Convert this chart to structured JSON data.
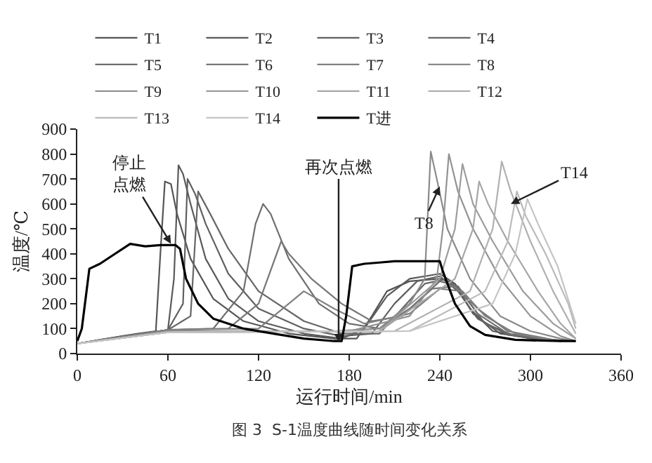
{
  "chart_data": {
    "type": "line",
    "xlabel": "运行时间/min",
    "ylabel": "温度/℃",
    "xlim": [
      0,
      360
    ],
    "xticks": [
      0,
      60,
      120,
      180,
      240,
      300,
      360
    ],
    "ylim": [
      0,
      900
    ],
    "yticks": [
      0,
      100,
      200,
      300,
      400,
      500,
      600,
      700,
      800,
      900
    ],
    "grid": false,
    "legend": "top",
    "marker": "none",
    "line_style": "solid",
    "series": [
      {
        "name": "T1",
        "color": "#555555",
        "x": [
          0,
          20,
          40,
          52,
          55,
          58,
          62,
          66,
          75,
          90,
          110,
          140,
          170,
          185,
          195,
          205,
          220,
          240,
          250,
          260,
          275,
          300,
          330
        ],
        "values": [
          40,
          60,
          80,
          90,
          400,
          690,
          680,
          560,
          380,
          220,
          130,
          80,
          60,
          60,
          150,
          250,
          290,
          300,
          280,
          180,
          90,
          60,
          50
        ]
      },
      {
        "name": "T2",
        "color": "#5a5a5a",
        "x": [
          0,
          30,
          60,
          64,
          67,
          70,
          75,
          85,
          100,
          120,
          150,
          175,
          190,
          205,
          220,
          240,
          250,
          262,
          280,
          310,
          330
        ],
        "values": [
          40,
          70,
          95,
          300,
          755,
          720,
          600,
          380,
          220,
          130,
          80,
          60,
          100,
          230,
          300,
          320,
          280,
          160,
          80,
          55,
          50
        ]
      },
      {
        "name": "T3",
        "color": "#606060",
        "x": [
          0,
          60,
          70,
          73,
          78,
          85,
          100,
          120,
          150,
          175,
          195,
          210,
          225,
          240,
          252,
          265,
          285,
          320
        ],
        "values": [
          40,
          95,
          200,
          700,
          640,
          520,
          320,
          180,
          100,
          70,
          80,
          200,
          290,
          310,
          250,
          140,
          75,
          50
        ]
      },
      {
        "name": "T4",
        "color": "#666666",
        "x": [
          0,
          60,
          75,
          80,
          88,
          100,
          120,
          150,
          175,
          200,
          215,
          230,
          245,
          255,
          270,
          290,
          320
        ],
        "values": [
          40,
          95,
          150,
          650,
          560,
          420,
          250,
          130,
          80,
          80,
          180,
          280,
          300,
          240,
          120,
          70,
          50
        ]
      },
      {
        "name": "T5",
        "color": "#6e6e6e",
        "x": [
          0,
          60,
          90,
          110,
          118,
          123,
          128,
          140,
          160,
          180,
          200,
          220,
          240,
          252,
          265,
          285,
          320
        ],
        "values": [
          40,
          95,
          100,
          250,
          520,
          600,
          560,
          380,
          200,
          120,
          100,
          180,
          290,
          270,
          160,
          80,
          50
        ]
      },
      {
        "name": "T6",
        "color": "#777777",
        "x": [
          0,
          60,
          100,
          120,
          135,
          140,
          155,
          175,
          195,
          215,
          235,
          250,
          265,
          285,
          320
        ],
        "values": [
          40,
          95,
          100,
          200,
          450,
          400,
          300,
          200,
          130,
          150,
          260,
          270,
          180,
          90,
          50
        ]
      },
      {
        "name": "T7",
        "color": "#808080",
        "x": [
          0,
          60,
          120,
          150,
          170,
          190,
          220,
          240,
          255,
          270,
          290,
          320
        ],
        "values": [
          40,
          95,
          100,
          250,
          180,
          120,
          160,
          260,
          250,
          150,
          80,
          50
        ]
      },
      {
        "name": "T8",
        "color": "#8a8a8a",
        "x": [
          0,
          60,
          170,
          200,
          220,
          230,
          234,
          238,
          245,
          260,
          280,
          300,
          320,
          330
        ],
        "values": [
          40,
          90,
          90,
          100,
          200,
          300,
          810,
          700,
          500,
          300,
          150,
          90,
          60,
          50
        ]
      },
      {
        "name": "T9",
        "color": "#939393",
        "x": [
          0,
          60,
          180,
          220,
          238,
          242,
          246,
          252,
          262,
          280,
          300,
          320,
          330
        ],
        "values": [
          40,
          90,
          90,
          150,
          300,
          500,
          800,
          650,
          500,
          300,
          150,
          70,
          50
        ]
      },
      {
        "name": "T10",
        "color": "#9c9c9c",
        "x": [
          0,
          60,
          200,
          240,
          250,
          255,
          262,
          275,
          295,
          315,
          330
        ],
        "values": [
          40,
          85,
          90,
          300,
          500,
          760,
          600,
          450,
          250,
          120,
          60
        ]
      },
      {
        "name": "T11",
        "color": "#a6a6a6",
        "x": [
          0,
          60,
          200,
          250,
          262,
          266,
          272,
          285,
          305,
          320,
          330
        ],
        "values": [
          40,
          85,
          90,
          300,
          500,
          690,
          600,
          450,
          250,
          120,
          60
        ]
      },
      {
        "name": "T12",
        "color": "#b0b0b0",
        "x": [
          0,
          60,
          210,
          260,
          275,
          281,
          287,
          300,
          315,
          330
        ],
        "values": [
          40,
          85,
          90,
          250,
          500,
          770,
          650,
          450,
          250,
          80
        ]
      },
      {
        "name": "T13",
        "color": "#bababa",
        "x": [
          0,
          60,
          220,
          270,
          285,
          291,
          297,
          310,
          325,
          330
        ],
        "values": [
          40,
          85,
          90,
          250,
          450,
          650,
          550,
          400,
          200,
          100
        ]
      },
      {
        "name": "T14",
        "color": "#c4c4c4",
        "x": [
          0,
          60,
          220,
          275,
          290,
          298,
          305,
          318,
          330
        ],
        "values": [
          40,
          85,
          90,
          200,
          400,
          620,
          520,
          350,
          120
        ]
      },
      {
        "name": "T进",
        "color": "#000000",
        "x": [
          0,
          3,
          8,
          15,
          25,
          35,
          45,
          55,
          65,
          68,
          72,
          80,
          90,
          110,
          130,
          150,
          170,
          175,
          178,
          182,
          190,
          200,
          210,
          230,
          240,
          242,
          250,
          260,
          270,
          290,
          320,
          330
        ],
        "values": [
          50,
          100,
          340,
          360,
          400,
          440,
          430,
          435,
          435,
          420,
          300,
          200,
          140,
          100,
          80,
          60,
          50,
          50,
          150,
          350,
          360,
          365,
          370,
          370,
          370,
          330,
          200,
          110,
          75,
          55,
          50,
          50
        ]
      }
    ],
    "annotations": [
      {
        "text": "停止点燃",
        "x": 62,
        "y": 440
      },
      {
        "text": "再次点燃",
        "x": 173,
        "y": 45
      },
      {
        "text": "T8",
        "x": 240,
        "y": 670
      },
      {
        "text": "T14",
        "x": 287,
        "y": 600
      },
      "图 3  S-1温度曲线随时间变化关系"
    ]
  }
}
